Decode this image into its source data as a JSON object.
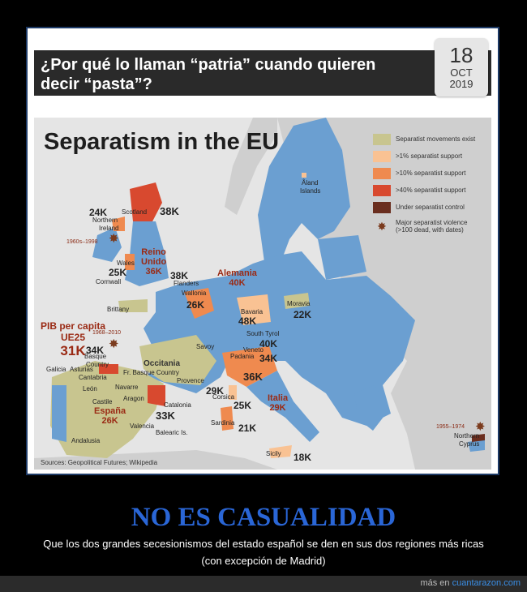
{
  "post": {
    "title": "¿Por qué lo llaman “patria” cuando quieren decir “pasta”?",
    "date": {
      "day": "18",
      "month": "OCT",
      "year": "2019"
    }
  },
  "map": {
    "title": "Separatism in the EU",
    "source": "Sources: Geopolitical Futures; Wikipedia",
    "colors": {
      "sea": "#e5e5e5",
      "land": "#cfcfcf",
      "eu": "#6b9fd1",
      "movements": "#c8c58f",
      "gt1": "#f9c293",
      "gt10": "#ef8a4f",
      "gt40": "#d8492f",
      "control": "#6a2e1f"
    },
    "legend": [
      {
        "label": "Separatist movements exist",
        "color": "#c8c58f"
      },
      {
        "label": ">1% separatist support",
        "color": "#f9c293"
      },
      {
        "label": ">10% separatist support",
        "color": "#ef8a4f"
      },
      {
        "label": ">40% separatist support",
        "color": "#d8492f"
      },
      {
        "label": "Under separatist control",
        "color": "#6a2e1f"
      }
    ],
    "legend_violence_l1": "Major separatist violence",
    "legend_violence_l2": "(>100 dead, with dates)",
    "labels": {
      "aland": "Åland",
      "islands": "Islands",
      "scotland": "Scotland",
      "northern": "Northern",
      "ireland": "Ireland",
      "wales": "Wales",
      "cornwall": "Cornwall",
      "flanders": "Flanders",
      "wallonia": "Wallonia",
      "brittany": "Brittany",
      "bavaria": "Bavaria",
      "moravia": "Moravia",
      "south_tyrol": "South Tyrol",
      "veneto": "Veneto",
      "savoy": "Savoy",
      "padania": "Padania",
      "occitania": "Occitania",
      "fr_basque": "Fr. Basque Country",
      "basque": "Basque",
      "country": "Country",
      "asturias": "Asturias",
      "cantabria": "Cantabria",
      "galicia": "Galicia",
      "navarre": "Navarre",
      "leon": "León",
      "castile": "Castile",
      "aragon": "Aragon",
      "provence": "Provence",
      "catalonia": "Catalonia",
      "corsica": "Corsica",
      "sardinia": "Sardinia",
      "valencia": "Valencia",
      "balearic": "Balearic Is.",
      "andalusia": "Andalusia",
      "sicily": "Sicily",
      "northern_cyprus_l1": "Northern",
      "northern_cyprus_l2": "Cyprus"
    },
    "values": {
      "ni": "24K",
      "scotland": "38K",
      "wales": "25K",
      "flanders": "38K",
      "wallonia": "26K",
      "bavaria": "48K",
      "moravia": "22K",
      "south_tyrol": "40K",
      "veneto": "34K",
      "padania": "36K",
      "basque": "34K",
      "provence": "29K",
      "corsica": "25K",
      "catalonia": "33K",
      "sardinia": "21K",
      "sicily": "18K"
    },
    "regions": {
      "reino_l1": "Reino",
      "reino_l2": "Unido",
      "reino_val": "36K",
      "alemania_l1": "Alemania",
      "alemania_val": "40K",
      "espana_l1": "España",
      "espana_val": "26K",
      "italia_l1": "Italia",
      "italia_val": "29K"
    },
    "violence_dates": {
      "ni": "1960s–1998",
      "basque": "1968–2010",
      "cyprus": "1955–1974"
    },
    "pib": {
      "line1": "PIB per capita",
      "line2": "UE25",
      "value": "31K"
    }
  },
  "headline": "NO ES CASUALIDAD",
  "caption_l1": "Que los dos grandes secesionismos del estado español se den en sus dos regiones más ricas",
  "caption_l2": "(con excepción de Madrid)",
  "footer": {
    "prefix": "más en",
    "site": "cuantarazon.com"
  }
}
